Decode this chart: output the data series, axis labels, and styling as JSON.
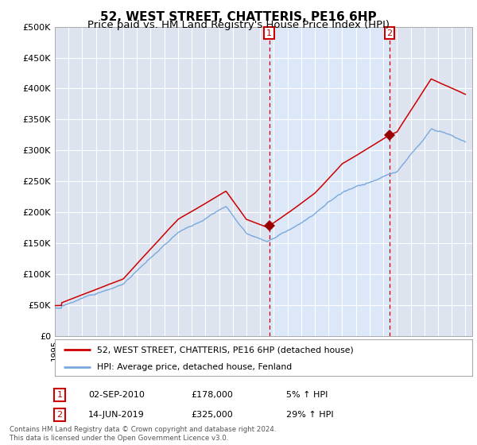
{
  "title": "52, WEST STREET, CHATTERIS, PE16 6HP",
  "subtitle": "Price paid vs. HM Land Registry's House Price Index (HPI)",
  "ylim": [
    0,
    500000
  ],
  "yticks": [
    0,
    50000,
    100000,
    150000,
    200000,
    250000,
    300000,
    350000,
    400000,
    450000,
    500000
  ],
  "ytick_labels": [
    "£0",
    "£50K",
    "£100K",
    "£150K",
    "£200K",
    "£250K",
    "£300K",
    "£350K",
    "£400K",
    "£450K",
    "£500K"
  ],
  "background_color": "#ffffff",
  "plot_bg_color": "#dde4f0",
  "shade_color": "#dce8f8",
  "grid_color": "#ffffff",
  "sale1_date": 2010.67,
  "sale1_price": 178000,
  "sale2_date": 2019.45,
  "sale2_price": 325000,
  "line_color_red": "#cc0000",
  "line_color_blue": "#7aaadd",
  "legend_label_red": "52, WEST STREET, CHATTERIS, PE16 6HP (detached house)",
  "legend_label_blue": "HPI: Average price, detached house, Fenland",
  "annotation1_date": "02-SEP-2010",
  "annotation1_price": "£178,000",
  "annotation1_pct": "5% ↑ HPI",
  "annotation2_date": "14-JUN-2019",
  "annotation2_price": "£325,000",
  "annotation2_pct": "29% ↑ HPI",
  "footer": "Contains HM Land Registry data © Crown copyright and database right 2024.\nThis data is licensed under the Open Government Licence v3.0."
}
